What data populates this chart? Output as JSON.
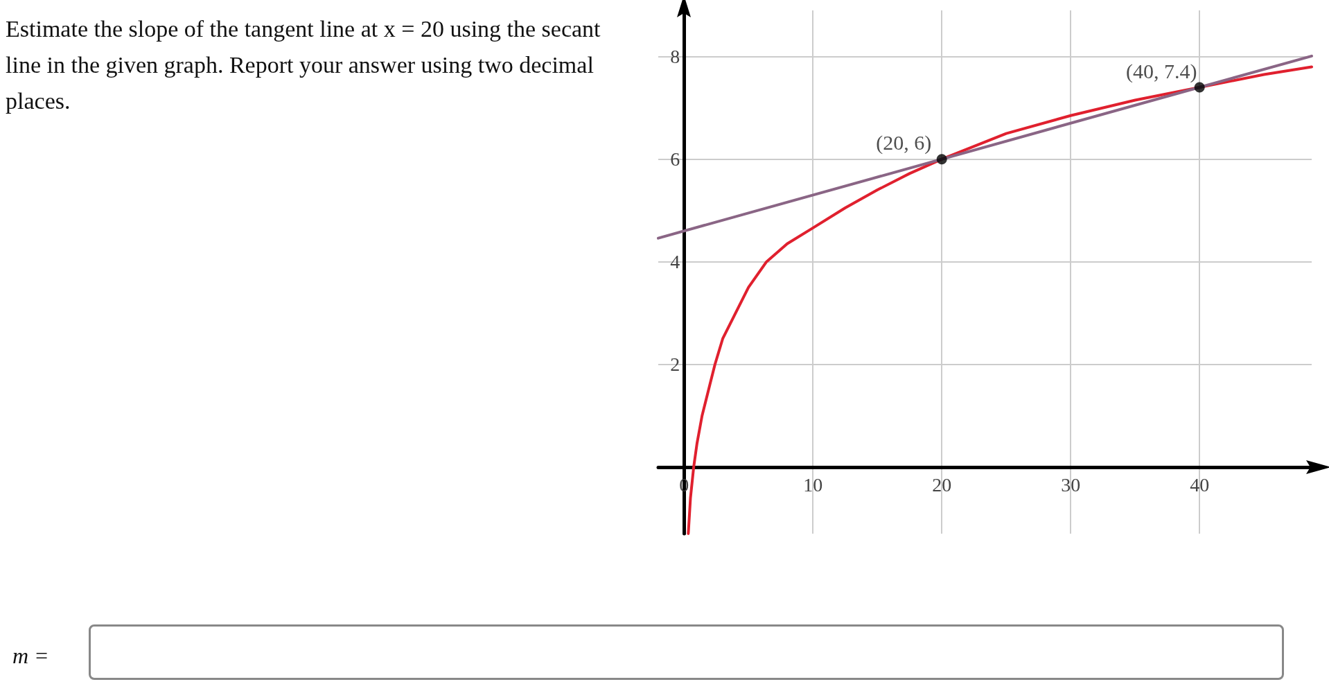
{
  "chart_data": {
    "type": "line",
    "title": "Estimate the slope of the tangent line at x = 20 using the secant line in the given graph. Report your answer using two decimal places.",
    "xlim": [
      -2,
      48.7
    ],
    "ylim": [
      -1.3,
      8.9
    ],
    "xticks": [
      0,
      10,
      20,
      30,
      40
    ],
    "yticks": [
      2,
      4,
      6,
      8
    ],
    "grid": true,
    "series": [
      {
        "color": "#e0202e",
        "x": [
          0.33,
          0.5,
          0.75,
          1,
          1.4,
          2,
          2.4,
          3,
          4,
          5,
          6.4,
          8,
          10,
          12.5,
          15,
          17.5,
          20,
          25,
          30,
          35,
          40,
          45,
          48.7
        ],
        "values": [
          -1.3,
          -0.6,
          0,
          0.45,
          1,
          1.6,
          2,
          2.5,
          3,
          3.5,
          4,
          4.35,
          4.66,
          5.05,
          5.4,
          5.72,
          6,
          6.5,
          6.85,
          7.15,
          7.4,
          7.65,
          7.8
        ]
      },
      {
        "color": "#8a6585",
        "x": [
          -2,
          48.7
        ],
        "values": [
          4.46,
          8.01
        ]
      },
      {
        "type": "scatter",
        "marker": "circle",
        "color": "#000000",
        "x": [
          20,
          40
        ],
        "values": [
          6,
          7.4
        ]
      }
    ],
    "annotations": [
      {
        "text": "(20, 6)",
        "x": 20,
        "y": 6
      },
      {
        "text": "(40, 7.4)",
        "x": 40,
        "y": 7.4
      },
      "m ="
    ]
  }
}
